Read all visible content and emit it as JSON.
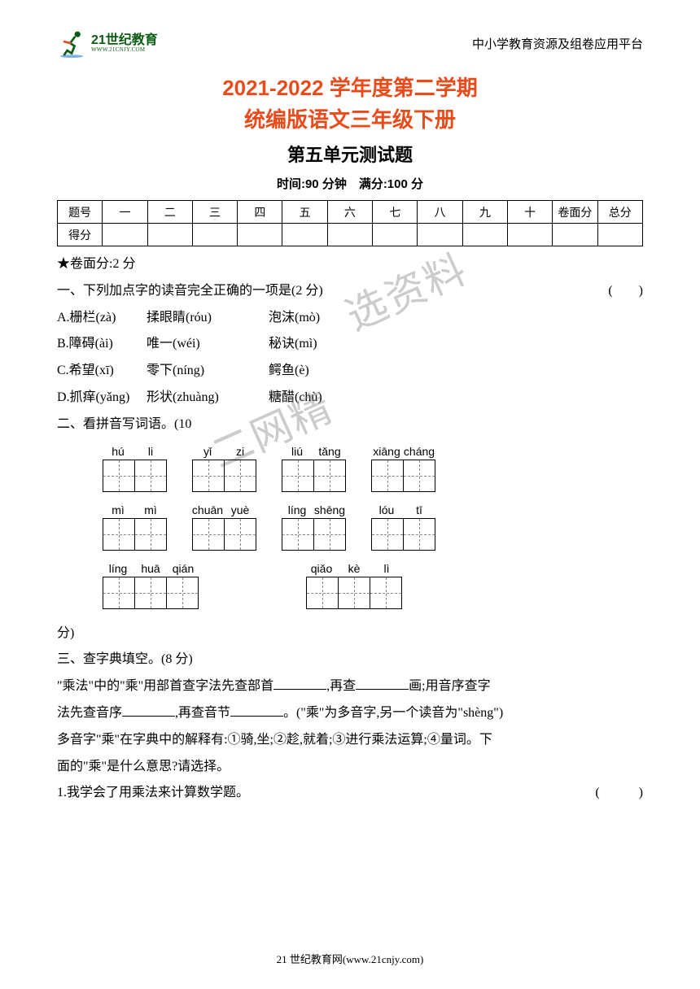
{
  "header": {
    "logo_main": "21世纪教育",
    "logo_sub": "WWW.21CNJY.COM",
    "platform_text": "中小学教育资源及组卷应用平台"
  },
  "title": {
    "line1": "2021-2022 学年度第二学期",
    "line2": "统编版语文三年级下册",
    "line3": "第五单元测试题",
    "info": "时间:90 分钟　满分:100 分"
  },
  "score_table": {
    "row1": [
      "题号",
      "一",
      "二",
      "三",
      "四",
      "五",
      "六",
      "七",
      "八",
      "九",
      "十",
      "卷面分",
      "总分"
    ],
    "row2_label": "得分"
  },
  "notes": {
    "surface_score": "★卷面分:2 分"
  },
  "q1": {
    "stem": "一、下列加点字的读音完全正确的一项是(2 分)",
    "paren": "(　　)",
    "opts": [
      {
        "l": "A.栅栏(zà)",
        "m": "揉眼睛(róu)",
        "r": "泡沫(mò)"
      },
      {
        "l": "B.障碍(ài)",
        "m": "唯一(wéi)",
        "r": "秘诀(mì)"
      },
      {
        "l": "C.希望(xī)",
        "m": "零下(níng)",
        "r": "鳄鱼(è)"
      },
      {
        "l": "D.抓痒(yǎng)",
        "m": "形状(zhuàng)",
        "r": "糖醋(chù)"
      }
    ]
  },
  "q2": {
    "stem": "二、看拼音写词语。(10",
    "rows": [
      [
        [
          "hú",
          "li"
        ],
        [
          "yǐ",
          "zi"
        ],
        [
          "liú",
          "tǎng"
        ],
        [
          "xiāng",
          "cháng"
        ]
      ],
      [
        [
          "mì",
          "mì"
        ],
        [
          "chuān",
          "yuè"
        ],
        [
          "líng",
          "shēng"
        ],
        [
          "lóu",
          "tī"
        ]
      ],
      [
        [
          "líng",
          "huā",
          "qián"
        ],
        [
          "qiǎo",
          "kè",
          "lì"
        ]
      ]
    ],
    "end": "分)"
  },
  "q3": {
    "stem": "三、查字典填空。(8 分)",
    "p1a": "\"乘法\"中的\"乘\"用部首查字法先查部首",
    "p1b": ",再查",
    "p1c": "画;用音序查字",
    "p2a": "法先查音序",
    "p2b": ",再查音节",
    "p2c": "。(\"乘\"为多音字,另一个读音为\"shèng\")",
    "p3": "多音字\"乘\"在字典中的解释有:①骑,坐;②趁,就着;③进行乘法运算;④量词。下",
    "p4": "面的\"乘\"是什么意思?请选择。",
    "item1": "1.我学会了用乘法来计算数学题。",
    "item_paren": "(　　　)"
  },
  "footer": "21 世纪教育网(www.21cnjy.com)",
  "watermark": {
    "w1": "选资料",
    "w2": "二网精"
  },
  "colors": {
    "red": "#e84c1a",
    "green": "#0a5c13"
  }
}
